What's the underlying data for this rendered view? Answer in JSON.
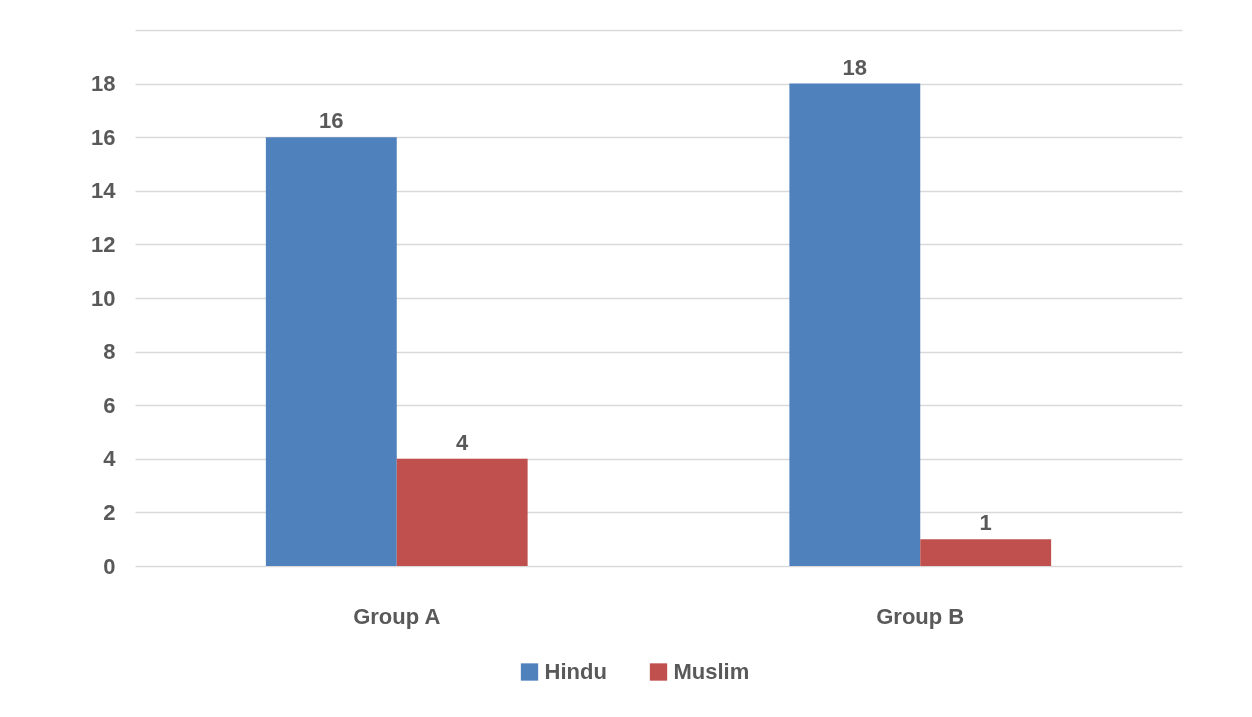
{
  "chart_data": {
    "type": "bar",
    "categories": [
      "Group A",
      "Group B"
    ],
    "series": [
      {
        "name": "Hindu",
        "color": "#4f81bd",
        "values": [
          16,
          18
        ]
      },
      {
        "name": "Muslim",
        "color": "#c0504d",
        "values": [
          4,
          1
        ]
      }
    ],
    "ylim": [
      0,
      20
    ],
    "yticks": [
      0,
      2,
      4,
      6,
      8,
      10,
      12,
      14,
      16,
      18,
      {
        "value": 20,
        "label": null
      }
    ],
    "grid": "y",
    "legend": "bottom",
    "data_labels": true
  }
}
